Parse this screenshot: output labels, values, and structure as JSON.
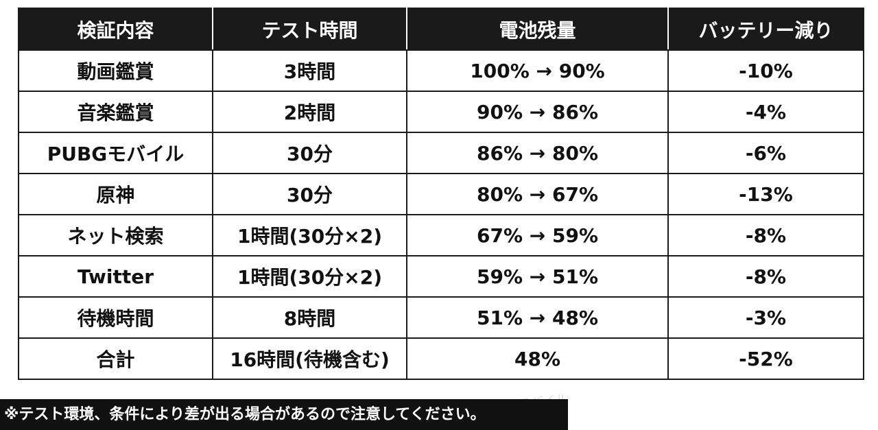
{
  "table": {
    "headers": [
      "検証内容",
      "テスト時間",
      "電池残量",
      "バッテリー減り"
    ],
    "rows": [
      [
        "動画鑑賞",
        "3時間",
        "100% → 90%",
        "-10%"
      ],
      [
        "音楽鑑賞",
        "2時間",
        "90% → 86%",
        "-4%"
      ],
      [
        "PUBGモバイル",
        "30分",
        "86% → 80%",
        "-6%"
      ],
      [
        "原神",
        "30分",
        "80% → 67%",
        "-13%"
      ],
      [
        "ネット検索",
        "1時間(30分×2)",
        "67% → 59%",
        "-8%"
      ],
      [
        "Twitter",
        "1時間(30分×2)",
        "59% → 51%",
        "-8%"
      ],
      [
        "待機時間",
        "8時間",
        "51% → 48%",
        "-3%"
      ],
      [
        "合計",
        "16時間(待機含む)",
        "48%",
        "-52%"
      ]
    ]
  },
  "note": "※テスト環境、条件により差が出る場合があるので注意してください。",
  "watermark": "@モバイル"
}
